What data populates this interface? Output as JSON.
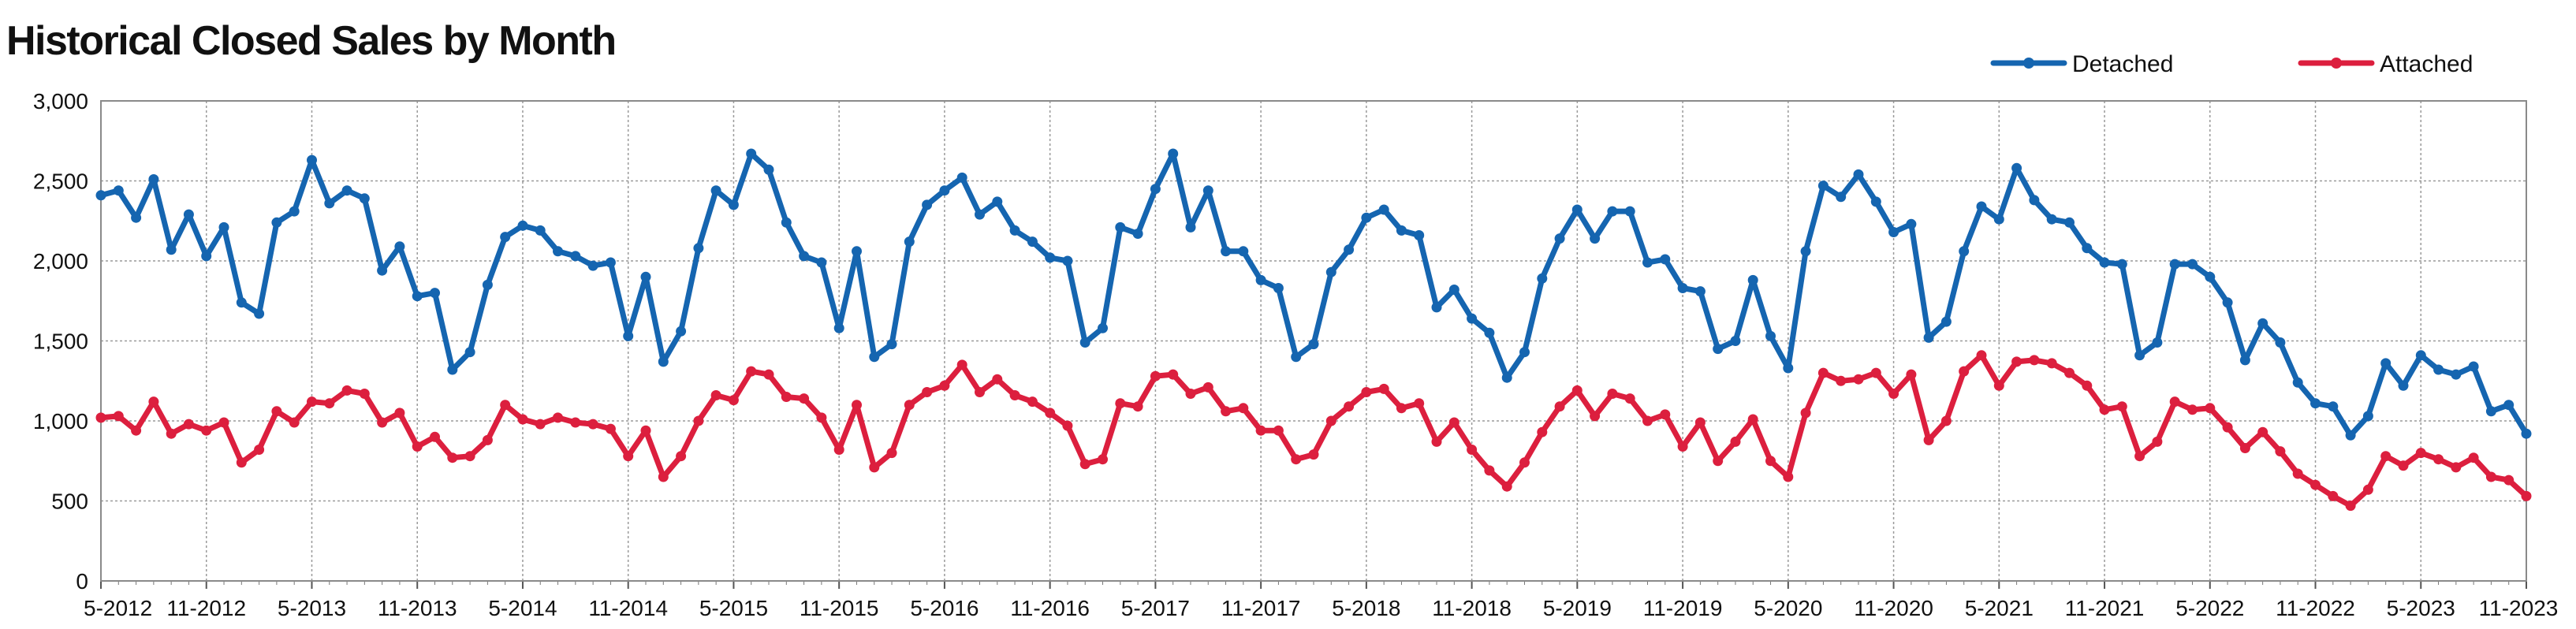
{
  "chart_data": {
    "type": "line",
    "title": "Historical Closed Sales by Month",
    "xlabel": "",
    "ylabel": "",
    "ylim": [
      0,
      3000
    ],
    "yticks": [
      0,
      500,
      1000,
      1500,
      2000,
      2500,
      3000
    ],
    "ytick_labels": [
      "0",
      "500",
      "1,000",
      "1,500",
      "2,000",
      "2,500",
      "3,000"
    ],
    "x_start": "5-2012",
    "x_end": "11-2023",
    "xtick_labels": [
      "5-2012",
      "11-2012",
      "5-2013",
      "11-2013",
      "5-2014",
      "11-2014",
      "5-2015",
      "11-2015",
      "5-2016",
      "11-2016",
      "5-2017",
      "11-2017",
      "5-2018",
      "11-2018",
      "5-2019",
      "11-2019",
      "5-2020",
      "11-2020",
      "5-2021",
      "11-2021",
      "5-2022",
      "11-2022",
      "5-2023",
      "11-2023"
    ],
    "grid": true,
    "legend_position": "top-right",
    "series": [
      {
        "name": "Detached",
        "color": "#1565b0",
        "values": [
          2410,
          2440,
          2270,
          2510,
          2070,
          2290,
          2030,
          2210,
          1740,
          1670,
          2240,
          2310,
          2630,
          2360,
          2440,
          2390,
          1940,
          2090,
          1780,
          1800,
          1320,
          1430,
          1850,
          2150,
          2220,
          2190,
          2060,
          2030,
          1970,
          1990,
          1530,
          1900,
          1370,
          1560,
          2080,
          2440,
          2350,
          2670,
          2570,
          2240,
          2030,
          1990,
          1580,
          2060,
          1400,
          1480,
          2120,
          2350,
          2440,
          2520,
          2290,
          2370,
          2190,
          2120,
          2020,
          2000,
          1490,
          1580,
          2210,
          2170,
          2450,
          2670,
          2210,
          2440,
          2060,
          2060,
          1880,
          1830,
          1400,
          1480,
          1930,
          2070,
          2270,
          2320,
          2190,
          2160,
          1710,
          1820,
          1640,
          1550,
          1270,
          1430,
          1890,
          2140,
          2320,
          2140,
          2310,
          2310,
          1990,
          2010,
          1830,
          1810,
          1450,
          1500,
          1880,
          1530,
          1330,
          2060,
          2470,
          2400,
          2540,
          2370,
          2180,
          2230,
          1520,
          1620,
          2060,
          2340,
          2260,
          2580,
          2380,
          2260,
          2240,
          2080,
          1990,
          1980,
          1410,
          1490,
          1980,
          1980,
          1900,
          1740,
          1380,
          1610,
          1490,
          1240,
          1110,
          1090,
          910,
          1030,
          1360,
          1220,
          1410,
          1320,
          1290,
          1340,
          1060,
          1100,
          920
        ]
      },
      {
        "name": "Attached",
        "color": "#dc1f3e",
        "values": [
          1020,
          1030,
          940,
          1120,
          920,
          980,
          940,
          990,
          740,
          820,
          1060,
          990,
          1120,
          1110,
          1190,
          1170,
          990,
          1050,
          840,
          900,
          770,
          780,
          880,
          1100,
          1010,
          980,
          1020,
          990,
          980,
          950,
          780,
          940,
          650,
          780,
          1000,
          1160,
          1130,
          1310,
          1290,
          1150,
          1140,
          1020,
          820,
          1100,
          710,
          800,
          1100,
          1180,
          1220,
          1350,
          1180,
          1260,
          1160,
          1120,
          1050,
          970,
          730,
          760,
          1110,
          1090,
          1280,
          1290,
          1170,
          1210,
          1060,
          1080,
          940,
          940,
          760,
          790,
          1000,
          1090,
          1180,
          1200,
          1080,
          1110,
          870,
          990,
          820,
          690,
          590,
          740,
          930,
          1090,
          1190,
          1030,
          1170,
          1140,
          1000,
          1040,
          840,
          990,
          750,
          870,
          1010,
          750,
          650,
          1050,
          1300,
          1250,
          1260,
          1300,
          1170,
          1290,
          880,
          1000,
          1310,
          1410,
          1220,
          1370,
          1380,
          1360,
          1300,
          1220,
          1070,
          1090,
          780,
          870,
          1120,
          1070,
          1080,
          960,
          830,
          930,
          810,
          670,
          600,
          530,
          470,
          570,
          780,
          720,
          800,
          760,
          710,
          770,
          650,
          630,
          530
        ]
      }
    ]
  }
}
